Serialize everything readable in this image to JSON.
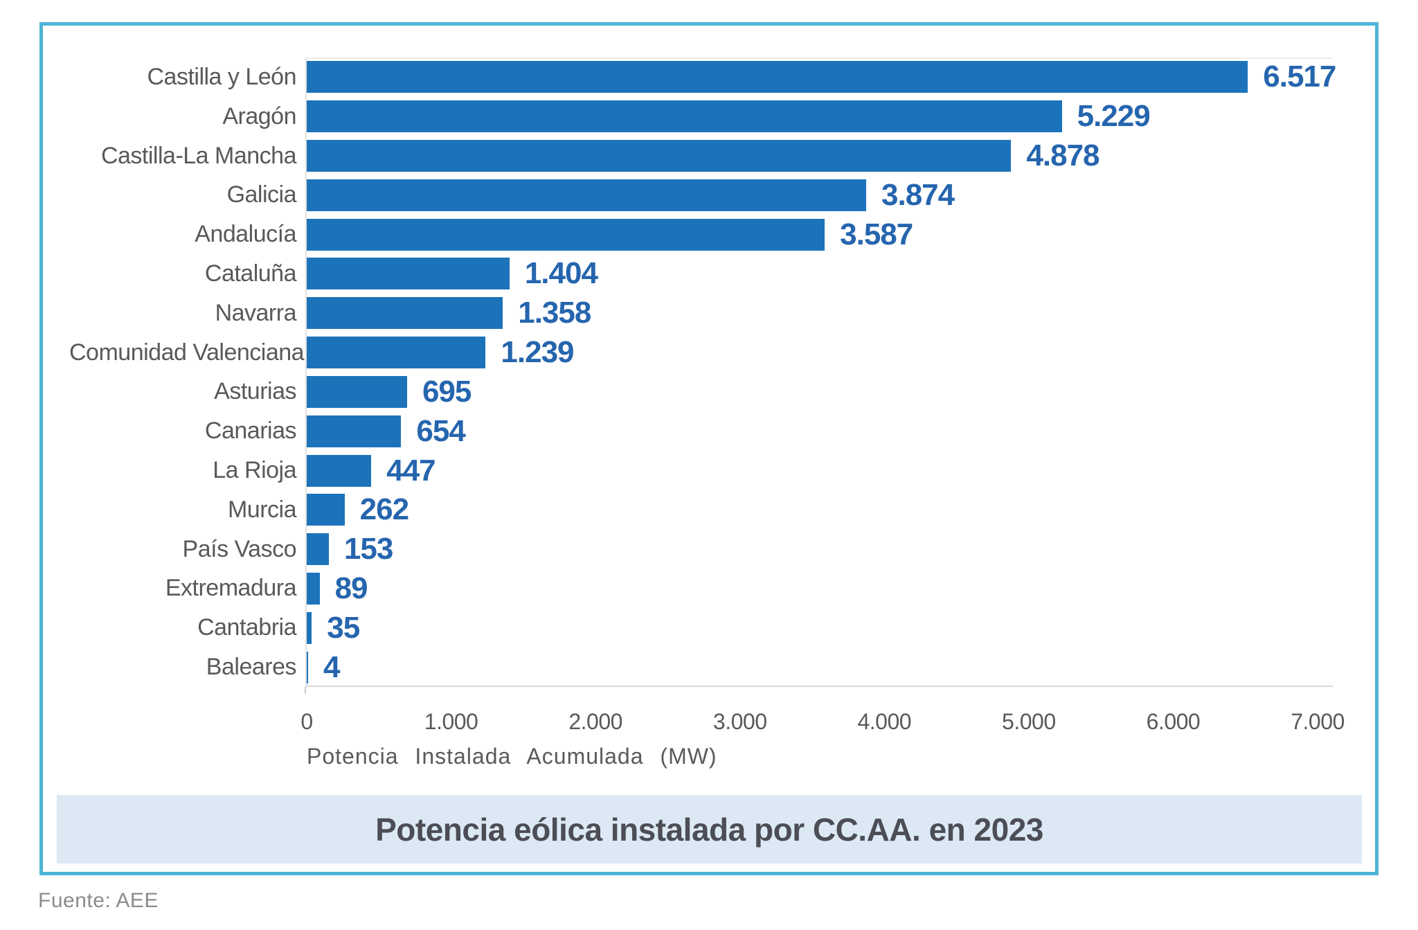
{
  "chart_data": {
    "type": "bar",
    "orientation": "horizontal",
    "title": "Potencia eólica instalada por CC.AA. en 2023",
    "xlabel": "Potencia Instalada Acumulada (MW)",
    "categories": [
      "Castilla y León",
      "Aragón",
      "Castilla-La Mancha",
      "Galicia",
      "Andalucía",
      "Cataluña",
      "Navarra",
      "Comunidad Valenciana",
      "Asturias",
      "Canarias",
      "La Rioja",
      "Murcia",
      "País Vasco",
      "Extremadura",
      "Cantabria",
      "Baleares"
    ],
    "values": [
      6517,
      5229,
      4878,
      3874,
      3587,
      1404,
      1358,
      1239,
      695,
      654,
      447,
      262,
      153,
      89,
      35,
      4
    ],
    "value_labels": [
      "6.517",
      "5.229",
      "4.878",
      "3.874",
      "3.587",
      "1.404",
      "1.358",
      "1.239",
      "695",
      "654",
      "447",
      "262",
      "153",
      "89",
      "35",
      "4"
    ],
    "x_ticks": [
      "0",
      "1.000",
      "2.000",
      "3.000",
      "4.000",
      "5.000",
      "6.000",
      "7.000"
    ],
    "x_tick_values": [
      0,
      1000,
      2000,
      3000,
      4000,
      5000,
      6000,
      7000
    ],
    "xlim": [
      0,
      7000
    ],
    "grid": false,
    "legend": null,
    "bar_color": "#1C73BA",
    "value_label_color": "#2565AE"
  },
  "footer": {
    "source": "Fuente: AEE"
  },
  "colors": {
    "frame_border": "#4CB5D6",
    "title_band_background": "#DCE9F4",
    "title_text": "#4C4D55",
    "axis_text": "#58595B",
    "source_text": "#8B8B8B"
  }
}
